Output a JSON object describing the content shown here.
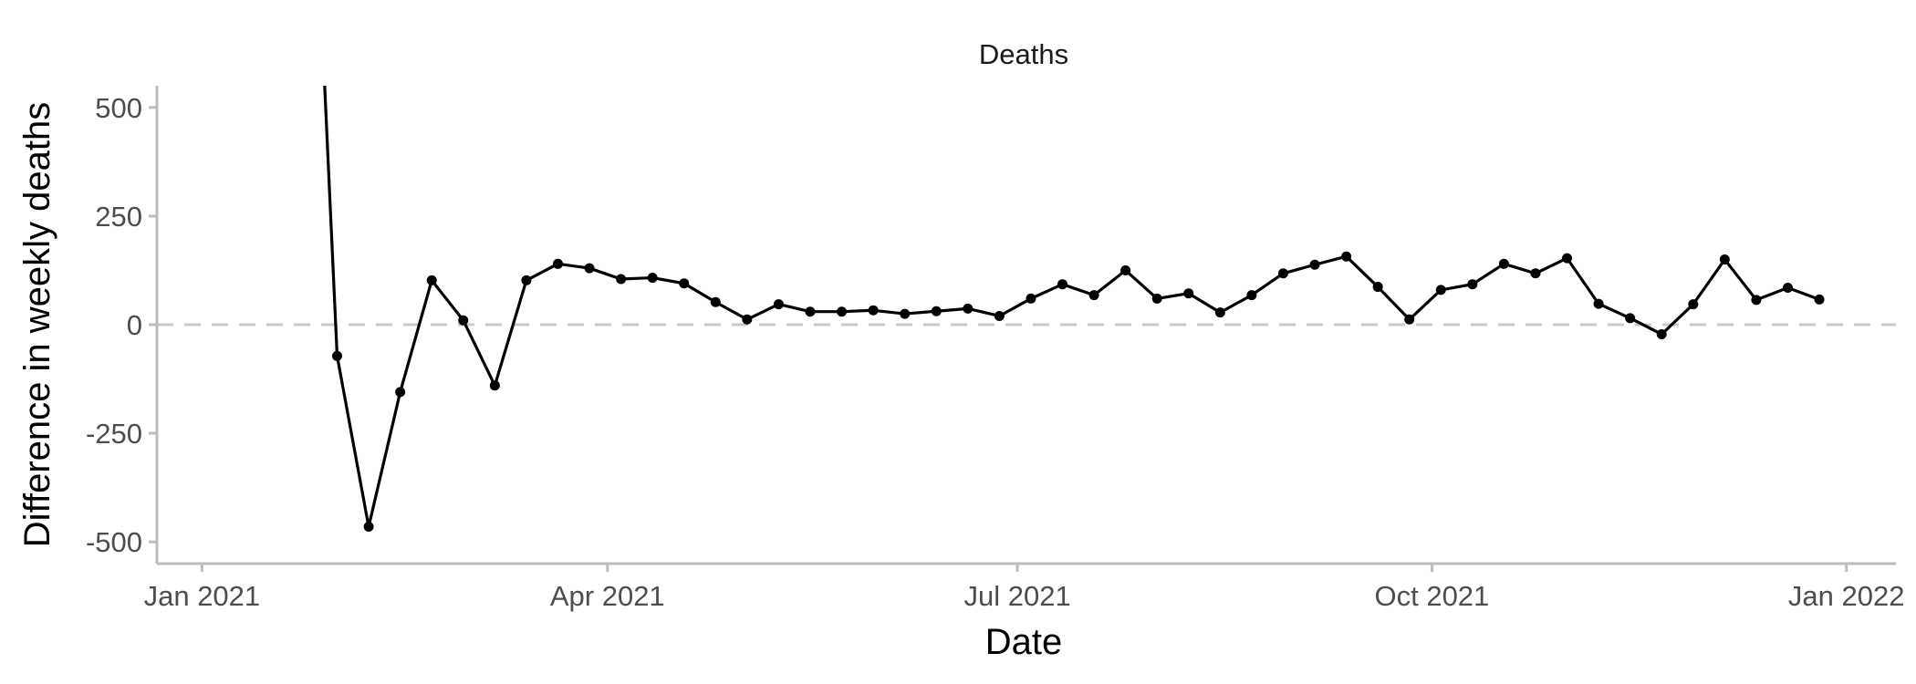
{
  "chart_data": {
    "type": "line",
    "title": "Deaths",
    "xlabel": "Date",
    "ylabel": "Difference in weekly deaths",
    "xlim": [
      "2020-12-22",
      "2022-01-12"
    ],
    "ylim": [
      -550,
      550
    ],
    "x_ticks": [
      {
        "date": "2021-01-01",
        "label": "Jan 2021"
      },
      {
        "date": "2021-04-01",
        "label": "Apr 2021"
      },
      {
        "date": "2021-07-01",
        "label": "Jul 2021"
      },
      {
        "date": "2021-10-01",
        "label": "Oct 2021"
      },
      {
        "date": "2022-01-01",
        "label": "Jan 2022"
      }
    ],
    "y_ticks": [
      {
        "value": 500,
        "label": "500"
      },
      {
        "value": 250,
        "label": "250"
      },
      {
        "value": 0,
        "label": "0"
      },
      {
        "value": -250,
        "label": "-250"
      },
      {
        "value": -500,
        "label": "-500"
      }
    ],
    "reference_line": {
      "y": 0,
      "style": "dashed",
      "color": "#c8c8c8"
    },
    "grid": false,
    "line_color": "#000000",
    "series": [
      {
        "points": [
          {
            "x": "2021-01-24",
            "y": 1500,
            "marker": false
          },
          {
            "x": "2021-01-31",
            "y": -72,
            "marker": true
          },
          {
            "x": "2021-02-07",
            "y": -465,
            "marker": true
          },
          {
            "x": "2021-02-14",
            "y": -155,
            "marker": true
          },
          {
            "x": "2021-02-21",
            "y": 102,
            "marker": true
          },
          {
            "x": "2021-02-28",
            "y": 10,
            "marker": true
          },
          {
            "x": "2021-03-07",
            "y": -140,
            "marker": true
          },
          {
            "x": "2021-03-14",
            "y": 102,
            "marker": true
          },
          {
            "x": "2021-03-21",
            "y": 140,
            "marker": true
          },
          {
            "x": "2021-03-28",
            "y": 130,
            "marker": true
          },
          {
            "x": "2021-04-04",
            "y": 105,
            "marker": true
          },
          {
            "x": "2021-04-11",
            "y": 108,
            "marker": true
          },
          {
            "x": "2021-04-18",
            "y": 95,
            "marker": true
          },
          {
            "x": "2021-04-25",
            "y": 52,
            "marker": true
          },
          {
            "x": "2021-05-02",
            "y": 12,
            "marker": true
          },
          {
            "x": "2021-05-09",
            "y": 47,
            "marker": true
          },
          {
            "x": "2021-05-16",
            "y": 30,
            "marker": true
          },
          {
            "x": "2021-05-23",
            "y": 30,
            "marker": true
          },
          {
            "x": "2021-05-30",
            "y": 33,
            "marker": true
          },
          {
            "x": "2021-06-06",
            "y": 25,
            "marker": true
          },
          {
            "x": "2021-06-13",
            "y": 31,
            "marker": true
          },
          {
            "x": "2021-06-20",
            "y": 37,
            "marker": true
          },
          {
            "x": "2021-06-27",
            "y": 20,
            "marker": true
          },
          {
            "x": "2021-07-04",
            "y": 60,
            "marker": true
          },
          {
            "x": "2021-07-11",
            "y": 93,
            "marker": true
          },
          {
            "x": "2021-07-18",
            "y": 68,
            "marker": true
          },
          {
            "x": "2021-07-25",
            "y": 125,
            "marker": true
          },
          {
            "x": "2021-08-01",
            "y": 60,
            "marker": true
          },
          {
            "x": "2021-08-08",
            "y": 72,
            "marker": true
          },
          {
            "x": "2021-08-15",
            "y": 28,
            "marker": true
          },
          {
            "x": "2021-08-22",
            "y": 68,
            "marker": true
          },
          {
            "x": "2021-08-29",
            "y": 118,
            "marker": true
          },
          {
            "x": "2021-09-05",
            "y": 138,
            "marker": true
          },
          {
            "x": "2021-09-12",
            "y": 157,
            "marker": true
          },
          {
            "x": "2021-09-19",
            "y": 87,
            "marker": true
          },
          {
            "x": "2021-09-26",
            "y": 12,
            "marker": true
          },
          {
            "x": "2021-10-03",
            "y": 80,
            "marker": true
          },
          {
            "x": "2021-10-10",
            "y": 93,
            "marker": true
          },
          {
            "x": "2021-10-17",
            "y": 140,
            "marker": true
          },
          {
            "x": "2021-10-24",
            "y": 118,
            "marker": true
          },
          {
            "x": "2021-10-31",
            "y": 153,
            "marker": true
          },
          {
            "x": "2021-11-07",
            "y": 48,
            "marker": true
          },
          {
            "x": "2021-11-14",
            "y": 15,
            "marker": true
          },
          {
            "x": "2021-11-21",
            "y": -22,
            "marker": true
          },
          {
            "x": "2021-11-28",
            "y": 47,
            "marker": true
          },
          {
            "x": "2021-12-05",
            "y": 150,
            "marker": true
          },
          {
            "x": "2021-12-12",
            "y": 57,
            "marker": true
          },
          {
            "x": "2021-12-19",
            "y": 85,
            "marker": true
          },
          {
            "x": "2021-12-26",
            "y": 58,
            "marker": true
          }
        ]
      }
    ]
  }
}
